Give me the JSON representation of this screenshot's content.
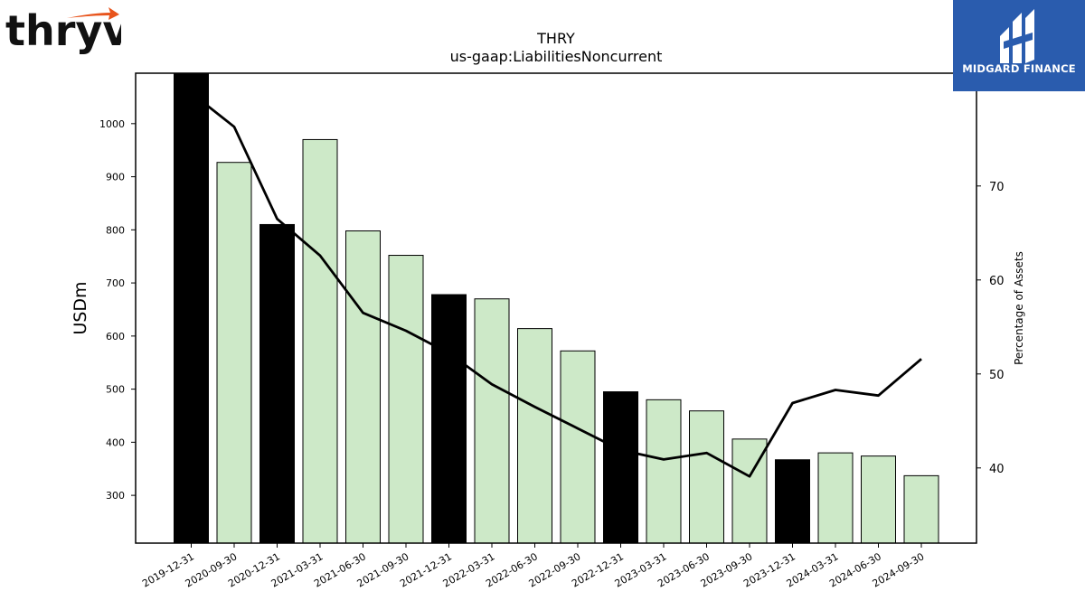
{
  "header": {
    "title_line1": "THRY",
    "title_line2": "us-gaap:LiabilitiesNoncurrent"
  },
  "logos": {
    "left_text": "thryv",
    "left_mark": "®",
    "right_text": "MIDGARD FINANCE",
    "right_bg": "#2a5cae",
    "left_accent": "#e8541c"
  },
  "chart_data": {
    "type": "bar",
    "title": "THRY",
    "subtitle": "us-gaap:LiabilitiesNoncurrent",
    "ylabel": "USDm",
    "y2label": "Percentage of Assets",
    "ylim": [
      210,
      1095
    ],
    "y2lim": [
      32,
      82
    ],
    "yticks": [
      300,
      400,
      500,
      600,
      700,
      800,
      900,
      1000
    ],
    "y2ticks": [
      40,
      50,
      60,
      70
    ],
    "categories": [
      "2019-12-31",
      "2020-09-30",
      "2020-12-31",
      "2021-03-31",
      "2021-06-30",
      "2021-09-30",
      "2021-12-31",
      "2022-03-31",
      "2022-06-30",
      "2022-09-30",
      "2022-12-31",
      "2023-03-31",
      "2023-06-30",
      "2023-09-30",
      "2023-12-31",
      "2024-03-31",
      "2024-06-30",
      "2024-09-30"
    ],
    "series": [
      {
        "values": [
          1095,
          927,
          810,
          970,
          798,
          752,
          678,
          670,
          614,
          572,
          495,
          480,
          459,
          406,
          367,
          380,
          374,
          337
        ],
        "kinds": [
          "annual",
          "quarterly",
          "annual",
          "quarterly",
          "quarterly",
          "quarterly",
          "annual",
          "quarterly",
          "quarterly",
          "quarterly",
          "annual",
          "quarterly",
          "quarterly",
          "quarterly",
          "annual",
          "quarterly",
          "quarterly",
          "quarterly"
        ]
      },
      {
        "axis": "right",
        "type": "line",
        "values": [
          79.9,
          76.3,
          66.5,
          62.6,
          56.5,
          54.6,
          52.2,
          48.9,
          46.5,
          44.2,
          41.9,
          40.9,
          41.6,
          39.1,
          46.9,
          48.3,
          47.7,
          51.6
        ]
      }
    ],
    "colors": {
      "annual": "#000000",
      "quarterly": "#cde9c8",
      "line": "#000000"
    },
    "grid": false
  }
}
